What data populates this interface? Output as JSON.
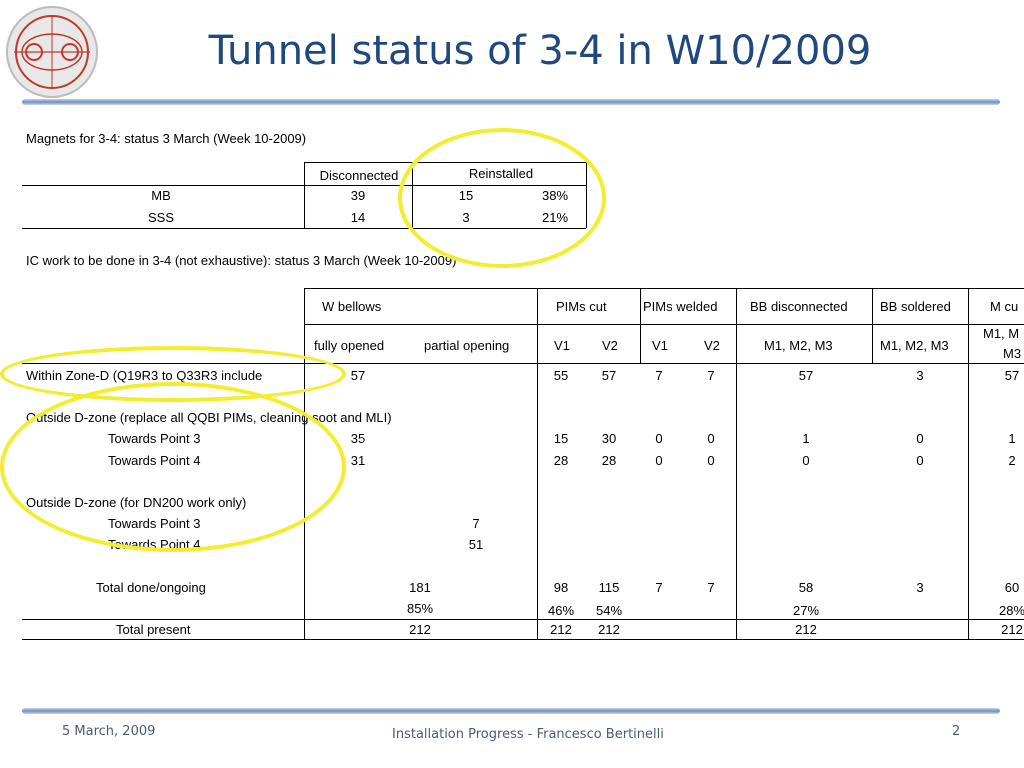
{
  "slide": {
    "title": "Tunnel status of 3-4 in W10/2009",
    "logo_icon": "lhc-accelerator-logo",
    "footer": {
      "date": "5 March, 2009",
      "center": "Installation Progress - Francesco Bertinelli",
      "page": "2"
    }
  },
  "magnets": {
    "heading": "Magnets for 3-4: status 3 March (Week 10-2009)",
    "columns": [
      "Disconnected",
      "Reinstalled"
    ],
    "rows": [
      {
        "label": "MB",
        "disconnected": "39",
        "reinstalled": "15",
        "pct": "38%"
      },
      {
        "label": "SSS",
        "disconnected": "14",
        "reinstalled": "3",
        "pct": "21%"
      }
    ]
  },
  "ic": {
    "heading": "IC work to be done in 3-4 (not exhaustive): status 3 March (Week 10-2009)",
    "groups": [
      "W bellows",
      "PIMs cut",
      "PIMs welded",
      "BB disconnected",
      "BB soldered",
      "M cu"
    ],
    "subheaders": [
      "fully opened",
      "partial opening",
      "V1",
      "V2",
      "V1",
      "V2",
      "M1, M2, M3",
      "M1, M2, M3",
      "M1, M",
      "M3"
    ],
    "zone_d": {
      "label": "Within Zone-D (Q19R3 to Q33R3 include",
      "values": [
        "57",
        "55",
        "57",
        "7",
        "7",
        "57",
        "3",
        "57"
      ]
    },
    "outside_d": {
      "label": "Outside D-zone (replace all QQBI PIMs, cleaning soot and MLI)",
      "rows": [
        {
          "label": "Towards Point 3",
          "values": [
            "35",
            "15",
            "30",
            "0",
            "0",
            "1",
            "0",
            "1"
          ]
        },
        {
          "label": "Towards Point 4",
          "values": [
            "31",
            "28",
            "28",
            "0",
            "0",
            "0",
            "0",
            "2"
          ]
        }
      ]
    },
    "dn200": {
      "label": "Outside D-zone (for DN200 work only)",
      "rows": [
        {
          "label": "Towards Point 3",
          "value": "7"
        },
        {
          "label": "Towards Point 4",
          "value": "51"
        }
      ]
    },
    "total_done": {
      "label": "Total done/ongoing",
      "values": [
        "181",
        "98",
        "115",
        "7",
        "7",
        "58",
        "3",
        "60"
      ]
    },
    "total_done_pct": [
      "85%",
      "46%",
      "54%",
      "27%",
      "28%"
    ],
    "total_present": {
      "label": "Total present",
      "values": [
        "212",
        "212",
        "212",
        "212",
        "212"
      ]
    }
  },
  "annotation_color": "#f2ee2e"
}
